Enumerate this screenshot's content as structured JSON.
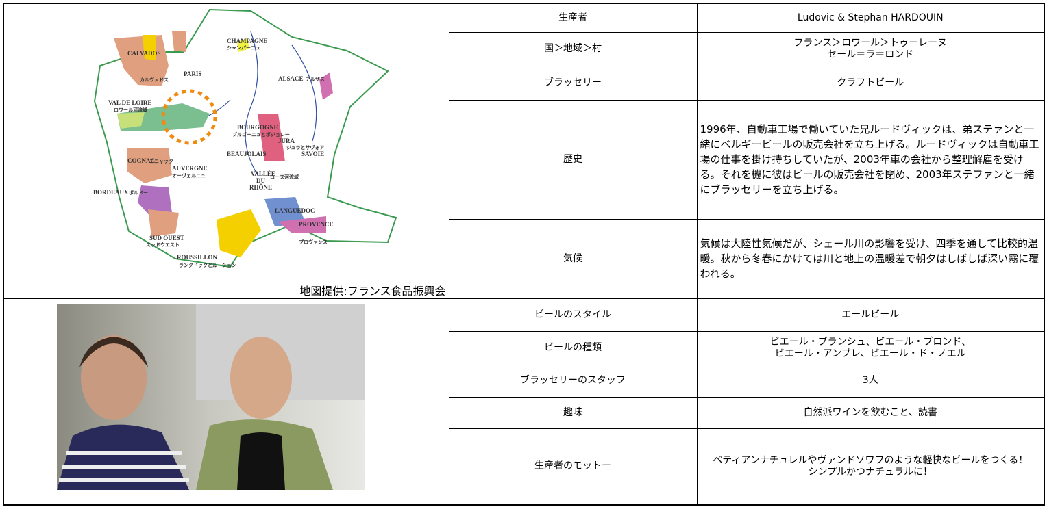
{
  "left": {
    "map_caption": "地図提供:フランス食品振興会",
    "map_labels": [
      "CHAMPAGNE",
      "シャンパーニュ",
      "CALVADOS",
      "カルヴァドス",
      "PARIS",
      "ALSACE",
      "アルザス",
      "VAL DE LOIRE",
      "ロワール河流域",
      "BOURGOGNE",
      "ブルゴーニュとボジョレー",
      "JURA",
      "ジュラとサヴォア",
      "SAVOIE",
      "COGNAC",
      "コニャック",
      "AUVERGNE",
      "オーヴェルニュ",
      "BEAUJOLAIS",
      "VALLÉE",
      "DU",
      "RHÔNE",
      "ローヌ河流域",
      "BORDEAUX",
      "ボルドー",
      "LANGUEDOC",
      "PROVENCE",
      "プロヴァンス",
      "SUD OUEST",
      "スッドウエスト",
      "ROUSSILLON",
      "ラングドックとルーション"
    ]
  },
  "table": {
    "rows": [
      [
        "生産者",
        "Ludovic & Stephan HARDOUIN"
      ],
      [
        "国＞地域＞村",
        "フランス＞ロワール＞トゥーレーヌ\nセール＝ラ＝ロンド"
      ],
      [
        "ブラッセリー",
        "クラフトビール"
      ],
      [
        "歴史",
        "1996年、自動車工場で働いていた兄ルードヴィックは、弟ステァンと一緒にベルギービールの販売会社を立ち上げる。ルードヴィックは自動車工場の仕事を掛け持ちしていたが、2003年車の会社から整理解雇を受ける。それを機に彼はビールの販売会社を閉め、2003年ステファンと一緒にブラッセリーを立ち上げる。"
      ],
      [
        "気候",
        "気候は大陸性気候だが、シェール川の影響を受け、四季を通して比較的温暖。秋から冬春にかけては川と地上の温暖差で朝夕はしばしば深い霧に覆われる。"
      ],
      [
        "ビールのスタイル",
        "エールビール"
      ],
      [
        "ビールの種類",
        "ビエール・ブランシュ、ビエール・ブロンド、\nビエール・アンブレ、ビエール・ド・ノエル"
      ],
      [
        "ブラッセリーのスタッフ",
        "3人"
      ],
      [
        "趣味",
        "自然派ワインを飲むこと、読書"
      ],
      [
        "生産者のモットー",
        "ペティアンナチュレルやヴァンドソワフのような軽快なビールをつくる！\nシンプルかつナチュラルに！"
      ]
    ]
  }
}
